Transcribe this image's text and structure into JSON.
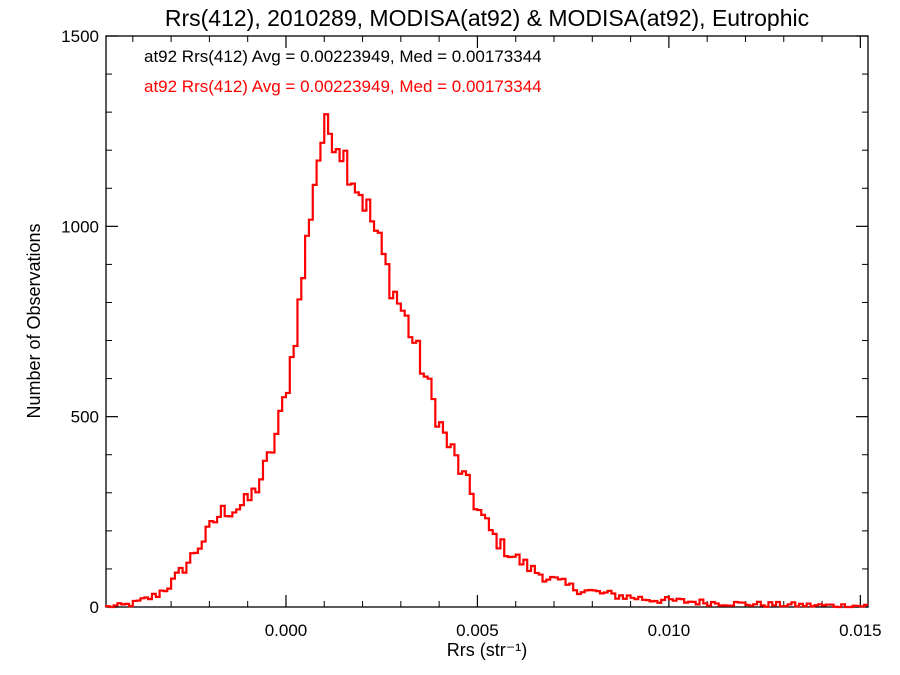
{
  "chart_data": {
    "type": "histogram",
    "title": "Rrs(412), 2010289, MODISA(at92) & MODISA(at92), Eutrophic",
    "xlabel": "Rrs (str⁻¹)",
    "ylabel": "Number of Observations",
    "xlim": [
      -0.0047,
      0.0152
    ],
    "ylim": [
      0,
      1500
    ],
    "x_ticks": [
      0.0,
      0.005,
      0.01,
      0.015
    ],
    "x_tick_labels": [
      "0.000",
      "0.005",
      "0.010",
      "0.015"
    ],
    "y_ticks": [
      0,
      500,
      1000,
      1500
    ],
    "y_tick_labels": [
      "0",
      "500",
      "1000",
      "1500"
    ],
    "grid": false,
    "annotations": [
      {
        "text": "at92 Rrs(412) Avg = 0.00223949, Med = 0.00173344",
        "color": "#000000"
      },
      {
        "text": "at92 Rrs(412) Avg = 0.00223949, Med = 0.00173344",
        "color": "#ff0000"
      }
    ],
    "series": [
      {
        "color": "#ff0000",
        "profile": [
          [
            -0.0047,
            0
          ],
          [
            -0.0045,
            2
          ],
          [
            -0.0042,
            5
          ],
          [
            -0.004,
            8
          ],
          [
            -0.0038,
            15
          ],
          [
            -0.0036,
            22
          ],
          [
            -0.0034,
            30
          ],
          [
            -0.0032,
            45
          ],
          [
            -0.003,
            60
          ],
          [
            -0.0028,
            85
          ],
          [
            -0.0026,
            110
          ],
          [
            -0.0024,
            140
          ],
          [
            -0.0022,
            170
          ],
          [
            -0.002,
            200
          ],
          [
            -0.0018,
            235
          ],
          [
            -0.0016,
            255
          ],
          [
            -0.0014,
            255
          ],
          [
            -0.0012,
            265
          ],
          [
            -0.001,
            275
          ],
          [
            -0.0008,
            305
          ],
          [
            -0.0006,
            350
          ],
          [
            -0.0004,
            400
          ],
          [
            -0.0002,
            470
          ],
          [
            0.0,
            560
          ],
          [
            0.0002,
            680
          ],
          [
            0.0004,
            830
          ],
          [
            0.0006,
            1000
          ],
          [
            0.0008,
            1160
          ],
          [
            0.001,
            1250
          ],
          [
            0.0012,
            1250
          ],
          [
            0.0014,
            1220
          ],
          [
            0.0016,
            1170
          ],
          [
            0.0018,
            1120
          ],
          [
            0.002,
            1080
          ],
          [
            0.0022,
            1030
          ],
          [
            0.0024,
            970
          ],
          [
            0.0026,
            900
          ],
          [
            0.0028,
            835
          ],
          [
            0.003,
            790
          ],
          [
            0.0032,
            740
          ],
          [
            0.0034,
            680
          ],
          [
            0.0036,
            620
          ],
          [
            0.0038,
            555
          ],
          [
            0.004,
            490
          ],
          [
            0.0042,
            435
          ],
          [
            0.0044,
            400
          ],
          [
            0.0046,
            350
          ],
          [
            0.0048,
            310
          ],
          [
            0.005,
            260
          ],
          [
            0.0052,
            225
          ],
          [
            0.0054,
            190
          ],
          [
            0.0056,
            165
          ],
          [
            0.0058,
            145
          ],
          [
            0.006,
            130
          ],
          [
            0.0062,
            115
          ],
          [
            0.0064,
            100
          ],
          [
            0.0066,
            90
          ],
          [
            0.007,
            70
          ],
          [
            0.0075,
            50
          ],
          [
            0.008,
            40
          ],
          [
            0.0085,
            32
          ],
          [
            0.009,
            26
          ],
          [
            0.0095,
            20
          ],
          [
            0.01,
            17
          ],
          [
            0.011,
            12
          ],
          [
            0.012,
            8
          ],
          [
            0.013,
            6
          ],
          [
            0.014,
            4
          ],
          [
            0.0152,
            3
          ]
        ]
      }
    ]
  }
}
